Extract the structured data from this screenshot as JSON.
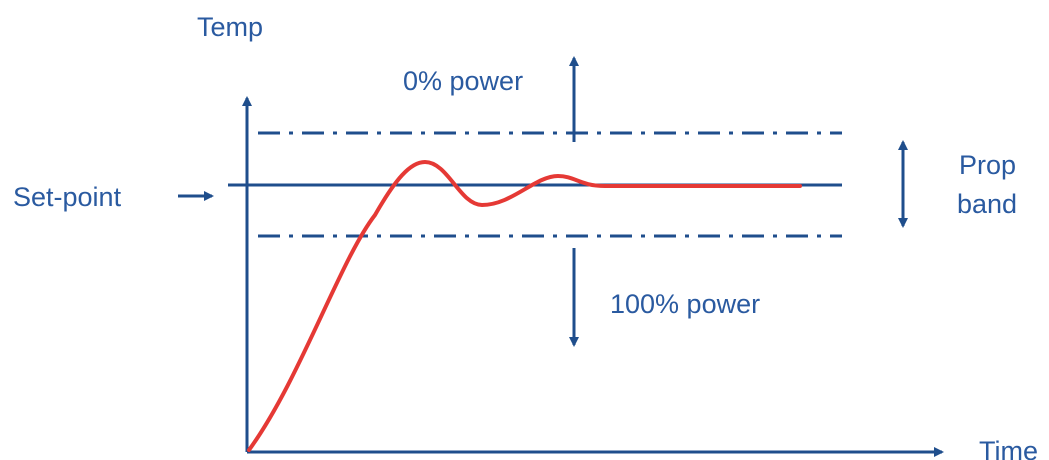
{
  "diagram": {
    "axis_y_label": "Temp",
    "axis_x_label": "Time",
    "setpoint_label": "Set-point",
    "upper_region_label": "0% power",
    "lower_region_label": "100% power",
    "band_label_line1": "Prop",
    "band_label_line2": "band"
  },
  "colors": {
    "axis": "#1f4e8c",
    "text": "#2a5aa0",
    "response_curve": "#e53935"
  }
}
